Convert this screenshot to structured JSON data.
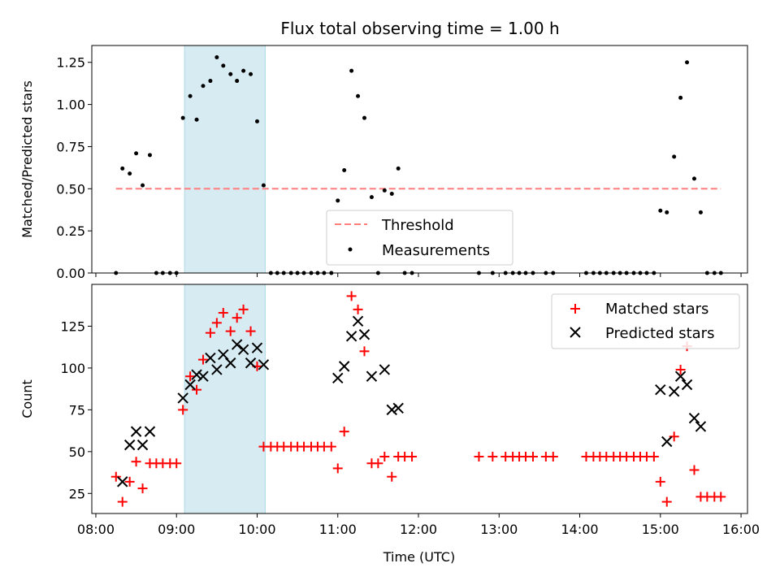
{
  "chart_data": [
    {
      "type": "scatter",
      "title": "Flux total observing time = 1.00 h",
      "xlabel": "",
      "ylabel": "Matched/Predicted stars",
      "ylim": [
        0,
        1.35
      ],
      "yticks": [
        "0.00",
        "0.25",
        "0.50",
        "0.75",
        "1.00",
        "1.25"
      ],
      "highlight_span": {
        "start": 9.1,
        "end": 10.1,
        "color": "#add8e6"
      },
      "threshold": {
        "name": "Threshold",
        "value": 0.5,
        "x_start": 8.25,
        "x_end": 15.75,
        "color": "#ff7f7f"
      },
      "measurements": {
        "name": "Measurements",
        "color": "#000000",
        "x": [
          8.25,
          8.33,
          8.42,
          8.5,
          8.58,
          8.67,
          8.75,
          8.83,
          8.92,
          9.0,
          9.08,
          9.17,
          9.25,
          9.33,
          9.42,
          9.5,
          9.58,
          9.67,
          9.75,
          9.83,
          9.92,
          10.0,
          10.08,
          10.17,
          10.25,
          10.33,
          10.42,
          10.5,
          10.58,
          10.67,
          10.75,
          10.83,
          10.92,
          11.0,
          11.08,
          11.17,
          11.25,
          11.33,
          11.42,
          11.5,
          11.58,
          11.67,
          11.75,
          11.83,
          11.92,
          12.75,
          12.92,
          13.08,
          13.17,
          13.25,
          13.33,
          13.42,
          13.58,
          13.67,
          14.08,
          14.17,
          14.25,
          14.33,
          14.42,
          14.5,
          14.58,
          14.67,
          14.75,
          14.83,
          14.92,
          15.0,
          15.08,
          15.17,
          15.25,
          15.33,
          15.42,
          15.5,
          15.58,
          15.67,
          15.75
        ],
        "y": [
          0.0,
          0.62,
          0.59,
          0.71,
          0.52,
          0.7,
          0.0,
          0.0,
          0.0,
          0.0,
          0.92,
          1.05,
          0.91,
          1.11,
          1.14,
          1.28,
          1.23,
          1.18,
          1.14,
          1.2,
          1.18,
          0.9,
          0.52,
          0.0,
          0.0,
          0.0,
          0.0,
          0.0,
          0.0,
          0.0,
          0.0,
          0.0,
          0.0,
          0.43,
          0.61,
          1.2,
          1.05,
          0.92,
          0.45,
          0.0,
          0.49,
          0.47,
          0.62,
          0.0,
          0.0,
          0.0,
          0.0,
          0.0,
          0.0,
          0.0,
          0.0,
          0.0,
          0.0,
          0.0,
          0.0,
          0.0,
          0.0,
          0.0,
          0.0,
          0.0,
          0.0,
          0.0,
          0.0,
          0.0,
          0.0,
          0.37,
          0.36,
          0.69,
          1.04,
          1.25,
          0.56,
          0.36,
          0.0,
          0.0,
          0.0
        ]
      },
      "legend": {
        "placement": "lower-center",
        "entries": [
          "Threshold",
          "Measurements"
        ]
      }
    },
    {
      "type": "scatter",
      "xlabel": "Time (UTC)",
      "ylabel": "Count",
      "xlim": [
        7.95,
        16.08
      ],
      "ylim": [
        13,
        150
      ],
      "xticks": [
        "08:00",
        "09:00",
        "10:00",
        "11:00",
        "12:00",
        "13:00",
        "14:00",
        "15:00",
        "16:00"
      ],
      "yticks": [
        "25",
        "50",
        "75",
        "100",
        "125"
      ],
      "highlight_span": {
        "start": 9.1,
        "end": 10.1,
        "color": "#add8e6"
      },
      "series": [
        {
          "name": "Matched stars",
          "marker": "plus",
          "color": "#ff0000",
          "x": [
            8.25,
            8.33,
            8.42,
            8.5,
            8.58,
            8.67,
            8.75,
            8.83,
            8.92,
            9.0,
            9.08,
            9.17,
            9.25,
            9.33,
            9.42,
            9.5,
            9.58,
            9.67,
            9.75,
            9.83,
            9.92,
            10.0,
            10.08,
            10.17,
            10.25,
            10.33,
            10.42,
            10.5,
            10.58,
            10.67,
            10.75,
            10.83,
            10.92,
            11.0,
            11.08,
            11.17,
            11.25,
            11.33,
            11.42,
            11.5,
            11.58,
            11.67,
            11.75,
            11.83,
            11.92,
            12.75,
            12.92,
            13.08,
            13.17,
            13.25,
            13.33,
            13.42,
            13.58,
            13.67,
            14.08,
            14.17,
            14.25,
            14.33,
            14.42,
            14.5,
            14.58,
            14.67,
            14.75,
            14.83,
            14.92,
            15.0,
            15.08,
            15.17,
            15.25,
            15.33,
            15.42,
            15.5,
            15.58,
            15.67,
            15.75
          ],
          "y": [
            35,
            20,
            32,
            44,
            28,
            43,
            43,
            43,
            43,
            43,
            75,
            95,
            87,
            105,
            121,
            127,
            133,
            122,
            130,
            135,
            122,
            101,
            53,
            53,
            53,
            53,
            53,
            53,
            53,
            53,
            53,
            53,
            53,
            40,
            62,
            143,
            135,
            110,
            43,
            43,
            47,
            35,
            47,
            47,
            47,
            47,
            47,
            47,
            47,
            47,
            47,
            47,
            47,
            47,
            47,
            47,
            47,
            47,
            47,
            47,
            47,
            47,
            47,
            47,
            47,
            32,
            20,
            59,
            99,
            113,
            39,
            23,
            23,
            23,
            23
          ]
        },
        {
          "name": "Predicted stars",
          "marker": "x",
          "color": "#000000",
          "x": [
            8.33,
            8.42,
            8.5,
            8.58,
            8.67,
            9.08,
            9.17,
            9.25,
            9.33,
            9.42,
            9.5,
            9.58,
            9.67,
            9.75,
            9.83,
            9.92,
            10.0,
            10.08,
            11.0,
            11.08,
            11.17,
            11.25,
            11.33,
            11.42,
            11.58,
            11.67,
            11.75,
            15.0,
            15.08,
            15.17,
            15.25,
            15.33,
            15.42,
            15.5
          ],
          "y": [
            32,
            54,
            62,
            54,
            62,
            82,
            90,
            96,
            95,
            106,
            99,
            108,
            103,
            114,
            111,
            103,
            112,
            102,
            94,
            101,
            119,
            128,
            120,
            95,
            99,
            75,
            76,
            87,
            56,
            86,
            95,
            90,
            70,
            65
          ]
        }
      ],
      "legend": {
        "placement": "top-right",
        "entries": [
          "Matched stars",
          "Predicted stars"
        ]
      }
    }
  ]
}
